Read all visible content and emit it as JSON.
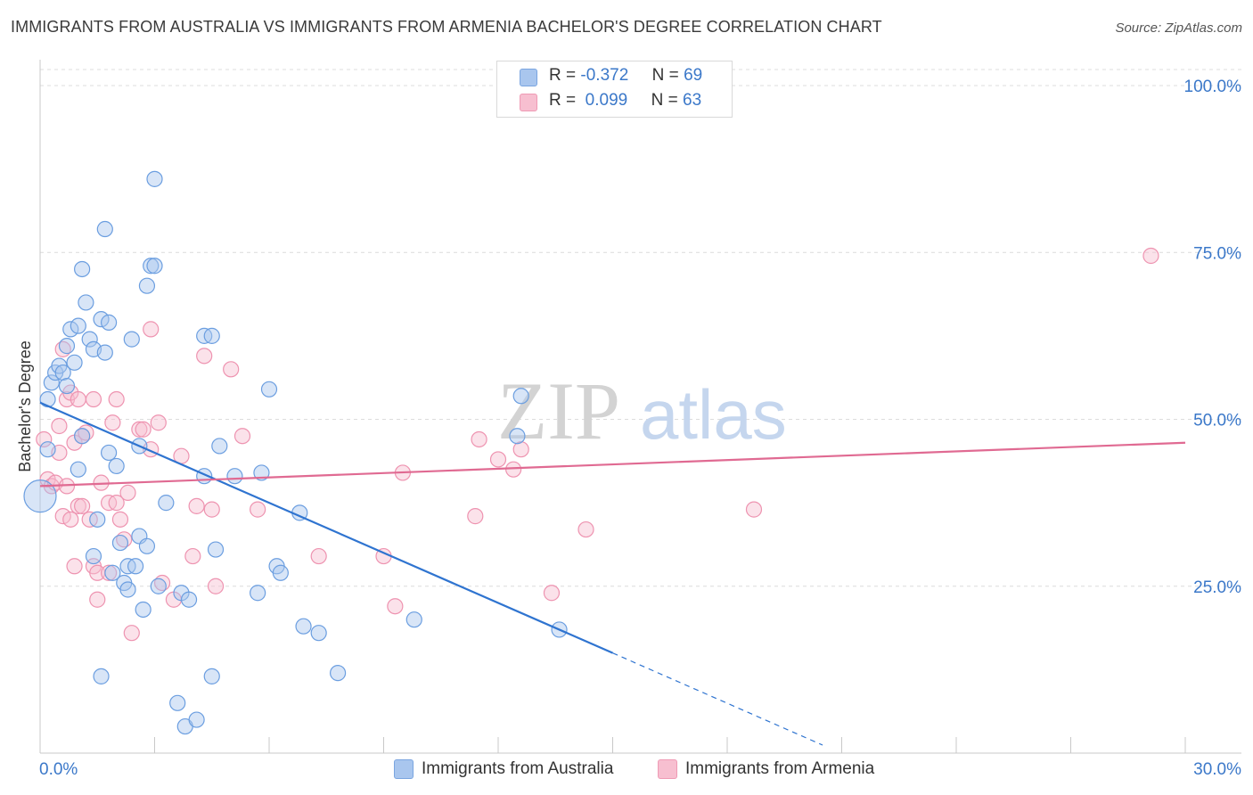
{
  "title": "IMMIGRANTS FROM AUSTRALIA VS IMMIGRANTS FROM ARMENIA BACHELOR'S DEGREE CORRELATION CHART",
  "source": "Source: ZipAtlas.com",
  "watermark": {
    "zip": "ZIP",
    "atlas": "atlas"
  },
  "legend": {
    "rows": [
      {
        "r_label": "R =",
        "r_value": "-0.372",
        "n_label": "N =",
        "n_value": "69",
        "color": "#a9c6ee",
        "stroke": "#7aa5e0"
      },
      {
        "r_label": "R =",
        "r_value": "0.099",
        "n_label": "N =",
        "n_value": "63",
        "color": "#f7bfd0",
        "stroke": "#ef9ab4"
      }
    ]
  },
  "bottom_legend": [
    "Immigrants from Australia",
    "Immigrants from Armenia"
  ],
  "colors": {
    "australia_fill": "#a9c6ee",
    "australia_stroke": "#6b9ee0",
    "australia_line": "#2f74d0",
    "armenia_fill": "#f7bfd0",
    "armenia_stroke": "#ee93b0",
    "armenia_line": "#e06a92",
    "grid": "#dcdcdc",
    "axis_label": "#3b78c9"
  },
  "chart_data": {
    "type": "scatter",
    "title": "IMMIGRANTS FROM AUSTRALIA VS IMMIGRANTS FROM ARMENIA BACHELOR'S DEGREE CORRELATION CHART",
    "xlabel": "",
    "ylabel": "Bachelor's Degree",
    "xlim": [
      0,
      30
    ],
    "ylim": [
      0,
      100
    ],
    "x_tick_labels": [
      "0.0%",
      "30.0%"
    ],
    "y_tick_labels": [
      "25.0%",
      "50.0%",
      "75.0%",
      "100.0%"
    ],
    "y_ticks": [
      25,
      50,
      75,
      100
    ],
    "series": [
      {
        "name": "Immigrants from Australia",
        "r": -0.372,
        "n": 69,
        "trend": {
          "x0": 0,
          "y0": 52.5,
          "x1": 15.0,
          "y1": 15.0,
          "dash_to_x": 20.5,
          "dash_to_y": 1.2
        },
        "points": [
          [
            0.0,
            38.5
          ],
          [
            0.2,
            45.5
          ],
          [
            0.2,
            53
          ],
          [
            0.3,
            55.5
          ],
          [
            0.4,
            57
          ],
          [
            0.5,
            58
          ],
          [
            0.6,
            57
          ],
          [
            0.7,
            61
          ],
          [
            0.7,
            55
          ],
          [
            0.8,
            63.5
          ],
          [
            0.9,
            58.5
          ],
          [
            1.0,
            64
          ],
          [
            1.0,
            42.5
          ],
          [
            1.1,
            47.5
          ],
          [
            1.1,
            72.5
          ],
          [
            1.2,
            67.5
          ],
          [
            1.3,
            62
          ],
          [
            1.4,
            60.5
          ],
          [
            1.4,
            29.5
          ],
          [
            1.6,
            65
          ],
          [
            1.6,
            11.5
          ],
          [
            1.7,
            78.5
          ],
          [
            1.7,
            60
          ],
          [
            1.8,
            45
          ],
          [
            1.8,
            64.5
          ],
          [
            1.9,
            27
          ],
          [
            2.0,
            43
          ],
          [
            2.1,
            31.5
          ],
          [
            2.2,
            25.5
          ],
          [
            2.3,
            28
          ],
          [
            2.3,
            24.5
          ],
          [
            2.4,
            62
          ],
          [
            2.5,
            28
          ],
          [
            2.6,
            46
          ],
          [
            2.6,
            32.5
          ],
          [
            2.7,
            21.5
          ],
          [
            2.8,
            70
          ],
          [
            2.8,
            31
          ],
          [
            2.9,
            73
          ],
          [
            3.0,
            73
          ],
          [
            3.0,
            86
          ],
          [
            3.3,
            37.5
          ],
          [
            3.6,
            7.5
          ],
          [
            3.7,
            24
          ],
          [
            3.8,
            4
          ],
          [
            3.9,
            23
          ],
          [
            4.1,
            5
          ],
          [
            4.3,
            41.5
          ],
          [
            4.3,
            62.5
          ],
          [
            4.5,
            62.5
          ],
          [
            4.5,
            11.5
          ],
          [
            4.6,
            30.5
          ],
          [
            4.7,
            46
          ],
          [
            5.1,
            41.5
          ],
          [
            5.7,
            24
          ],
          [
            5.8,
            42
          ],
          [
            6.0,
            54.5
          ],
          [
            6.2,
            28
          ],
          [
            6.3,
            27
          ],
          [
            6.8,
            36
          ],
          [
            6.9,
            19
          ],
          [
            7.3,
            18
          ],
          [
            7.8,
            12
          ],
          [
            9.8,
            20
          ],
          [
            12.5,
            47.5
          ],
          [
            12.6,
            53.5
          ],
          [
            13.6,
            18.5
          ],
          [
            3.1,
            25
          ],
          [
            1.5,
            35
          ]
        ],
        "large_point": [
          0.0,
          38.5
        ]
      },
      {
        "name": "Immigrants from Armenia",
        "r": 0.099,
        "n": 63,
        "trend": {
          "x0": 0,
          "y0": 40.0,
          "x1": 30,
          "y1": 46.5
        },
        "points": [
          [
            0.1,
            47
          ],
          [
            0.2,
            41
          ],
          [
            0.3,
            40
          ],
          [
            0.4,
            40.5
          ],
          [
            0.5,
            49
          ],
          [
            0.5,
            45
          ],
          [
            0.6,
            60.5
          ],
          [
            0.6,
            35.5
          ],
          [
            0.7,
            40
          ],
          [
            0.7,
            53
          ],
          [
            0.8,
            35
          ],
          [
            0.8,
            54
          ],
          [
            0.9,
            46.5
          ],
          [
            0.9,
            28
          ],
          [
            1.0,
            53
          ],
          [
            1.0,
            37
          ],
          [
            1.1,
            37
          ],
          [
            1.1,
            47.5
          ],
          [
            1.2,
            48
          ],
          [
            1.3,
            35
          ],
          [
            1.4,
            28
          ],
          [
            1.4,
            53
          ],
          [
            1.5,
            23
          ],
          [
            1.5,
            27
          ],
          [
            1.6,
            40.5
          ],
          [
            1.8,
            27
          ],
          [
            1.8,
            37.5
          ],
          [
            1.9,
            49.5
          ],
          [
            2.0,
            53
          ],
          [
            2.0,
            37.5
          ],
          [
            2.1,
            35
          ],
          [
            2.2,
            32
          ],
          [
            2.3,
            39
          ],
          [
            2.4,
            18
          ],
          [
            2.6,
            48.5
          ],
          [
            2.7,
            48.5
          ],
          [
            2.9,
            45.5
          ],
          [
            2.9,
            63.5
          ],
          [
            3.1,
            49.5
          ],
          [
            3.2,
            25.5
          ],
          [
            3.5,
            23
          ],
          [
            3.7,
            44.5
          ],
          [
            4.0,
            29.5
          ],
          [
            4.1,
            37
          ],
          [
            4.3,
            59.5
          ],
          [
            4.5,
            36.5
          ],
          [
            4.6,
            25
          ],
          [
            5.0,
            57.5
          ],
          [
            5.3,
            47.5
          ],
          [
            5.7,
            36.5
          ],
          [
            7.3,
            29.5
          ],
          [
            9.0,
            29.5
          ],
          [
            9.3,
            22
          ],
          [
            9.5,
            42
          ],
          [
            11.4,
            35.5
          ],
          [
            11.5,
            47
          ],
          [
            12.0,
            44
          ],
          [
            12.4,
            42.5
          ],
          [
            12.6,
            45.5
          ],
          [
            13.4,
            24
          ],
          [
            14.3,
            33.5
          ],
          [
            18.7,
            36.5
          ],
          [
            29.1,
            74.5
          ]
        ]
      }
    ]
  }
}
